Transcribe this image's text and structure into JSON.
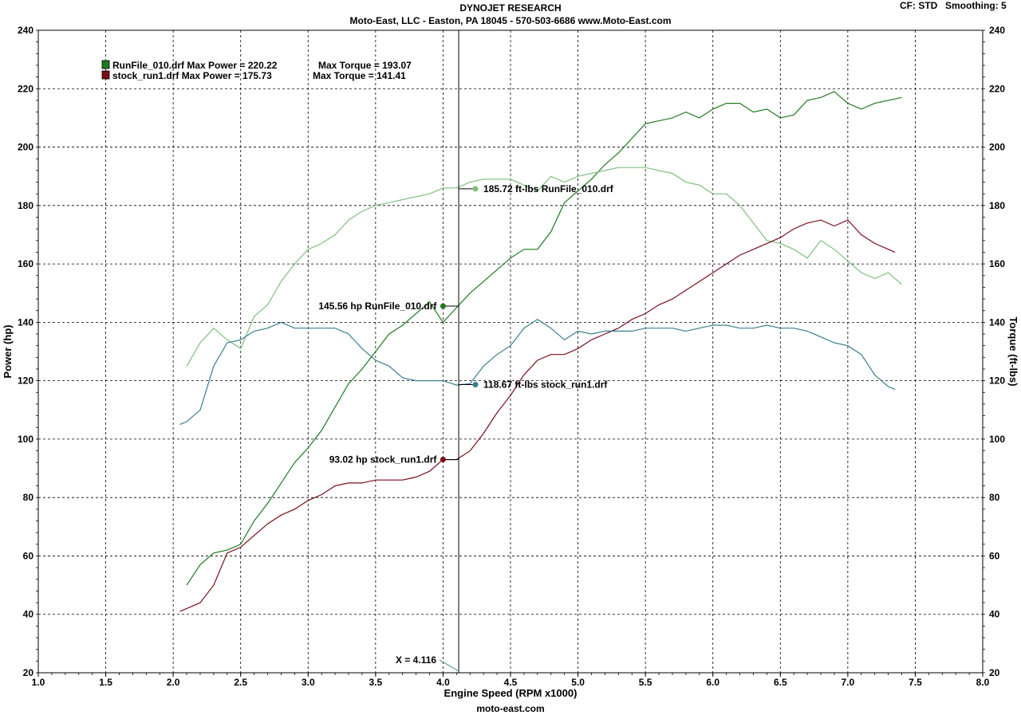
{
  "header": {
    "title": "DYNOJET RESEARCH",
    "subtitle": "Moto-East, LLC - Easton, PA 18045 - 570-503-6686 www.Moto-East.com",
    "cf": "CF: STD",
    "smoothing": "Smoothing: 5",
    "footer": "moto-east.com"
  },
  "colors": {
    "runfile_power": "#1f7a1f",
    "runfile_torque": "#7fbf7f",
    "stock_power": "#7a0f1a",
    "stock_torque": "#3a7f8f",
    "grid": "#000000"
  },
  "chart_data": {
    "type": "line",
    "xlabel": "Engine Speed (RPM x1000)",
    "ylabel": "Power (hp)",
    "y2label": "Torque (ft-lbs)",
    "xlim": [
      1.0,
      8.0
    ],
    "ylim": [
      20,
      240
    ],
    "y2lim": [
      20,
      240
    ],
    "xticks": [
      "1.0",
      "1.5",
      "2.0",
      "2.5",
      "3.0",
      "3.5",
      "4.0",
      "4.5",
      "5.0",
      "5.5",
      "6.0",
      "6.5",
      "7.0",
      "7.5",
      "8.0"
    ],
    "yticks": [
      "20",
      "40",
      "60",
      "80",
      "100",
      "120",
      "140",
      "160",
      "180",
      "200",
      "220",
      "240"
    ],
    "grid": true,
    "legend": [
      {
        "label": "RunFile_010.drf Max Power = 220.22",
        "torque": "Max Torque = 193.07",
        "color": "#1f7a1f"
      },
      {
        "label": "stock_run1.drf Max Power = 175.73",
        "torque": "Max Torque = 141.41",
        "color": "#7a0f1a"
      }
    ],
    "cursor": {
      "x": 4.116,
      "label": "X = 4.116"
    },
    "annotations": [
      {
        "text": "185.72 ft-lbs RunFile_010.drf",
        "x": 4.24,
        "y": 185.72,
        "color": "#7fbf7f",
        "side": "right"
      },
      {
        "text": "145.56 hp RunFile_010.drf",
        "x": 4.0,
        "y": 145.56,
        "color": "#1f7a1f",
        "side": "left"
      },
      {
        "text": "118.67 ft-lbs stock_run1.drf",
        "x": 4.24,
        "y": 118.67,
        "color": "#3a7f8f",
        "side": "right"
      },
      {
        "text": "93.02 hp stock_run1.drf",
        "x": 4.0,
        "y": 93.02,
        "color": "#7a0f1a",
        "side": "left"
      }
    ],
    "series": [
      {
        "name": "RunFile_010.drf Power",
        "color": "#1f7a1f",
        "x": [
          2.1,
          2.2,
          2.3,
          2.4,
          2.5,
          2.6,
          2.7,
          2.8,
          2.9,
          3.0,
          3.1,
          3.2,
          3.3,
          3.4,
          3.5,
          3.6,
          3.7,
          3.8,
          3.9,
          4.0,
          4.1,
          4.2,
          4.3,
          4.4,
          4.5,
          4.6,
          4.7,
          4.8,
          4.9,
          5.0,
          5.1,
          5.2,
          5.3,
          5.4,
          5.5,
          5.6,
          5.7,
          5.8,
          5.9,
          6.0,
          6.1,
          6.2,
          6.3,
          6.4,
          6.5,
          6.6,
          6.7,
          6.8,
          6.9,
          7.0,
          7.1,
          7.2,
          7.3,
          7.4
        ],
        "y": [
          50,
          57,
          61,
          62,
          64,
          72,
          78,
          85,
          92,
          97,
          103,
          111,
          119,
          124,
          130,
          136,
          139,
          143,
          147,
          140,
          145,
          150,
          154,
          158,
          162,
          165,
          165,
          171,
          181,
          185,
          189,
          194,
          198,
          203,
          208,
          209,
          210,
          212,
          210,
          213,
          215,
          215,
          212,
          213,
          210,
          211,
          216,
          217,
          219,
          215,
          213,
          215,
          216,
          217
        ]
      },
      {
        "name": "RunFile_010.drf Torque",
        "color": "#7fbf7f",
        "x": [
          2.1,
          2.2,
          2.3,
          2.4,
          2.5,
          2.6,
          2.7,
          2.8,
          2.9,
          3.0,
          3.1,
          3.2,
          3.3,
          3.4,
          3.5,
          3.6,
          3.7,
          3.8,
          3.9,
          4.0,
          4.1,
          4.2,
          4.3,
          4.4,
          4.5,
          4.6,
          4.7,
          4.8,
          4.9,
          5.0,
          5.1,
          5.2,
          5.3,
          5.4,
          5.5,
          5.6,
          5.7,
          5.8,
          5.9,
          6.0,
          6.1,
          6.2,
          6.3,
          6.4,
          6.5,
          6.6,
          6.7,
          6.8,
          6.9,
          7.0,
          7.1,
          7.2,
          7.3,
          7.4
        ],
        "y": [
          125,
          133,
          138,
          134,
          131,
          142,
          146,
          154,
          160,
          165,
          167,
          170,
          175,
          178,
          180,
          181,
          182,
          183,
          184,
          186,
          186,
          188,
          189,
          189,
          189,
          187,
          185,
          190,
          188,
          190,
          191,
          192,
          193,
          193,
          193,
          192,
          191,
          188,
          187,
          184,
          184,
          180,
          174,
          168,
          167,
          165,
          162,
          168,
          165,
          161,
          157,
          155,
          157,
          153
        ]
      },
      {
        "name": "stock_run1.drf Power",
        "color": "#7a0f1a",
        "x": [
          2.05,
          2.2,
          2.3,
          2.4,
          2.5,
          2.6,
          2.7,
          2.8,
          2.9,
          3.0,
          3.1,
          3.2,
          3.3,
          3.4,
          3.5,
          3.6,
          3.7,
          3.8,
          3.9,
          4.0,
          4.1,
          4.2,
          4.3,
          4.4,
          4.5,
          4.6,
          4.7,
          4.8,
          4.9,
          5.0,
          5.1,
          5.2,
          5.3,
          5.4,
          5.5,
          5.6,
          5.7,
          5.8,
          5.9,
          6.0,
          6.1,
          6.2,
          6.3,
          6.4,
          6.5,
          6.6,
          6.7,
          6.8,
          6.9,
          7.0,
          7.1,
          7.2,
          7.3,
          7.35
        ],
        "y": [
          41,
          44,
          50,
          61,
          63,
          67,
          71,
          74,
          76,
          79,
          81,
          84,
          85,
          85,
          86,
          86,
          86,
          87,
          89,
          93,
          93,
          96,
          102,
          109,
          115,
          122,
          127,
          129,
          129,
          131,
          134,
          136,
          138,
          141,
          143,
          146,
          148,
          151,
          154,
          157,
          160,
          163,
          165,
          167,
          169,
          172,
          174,
          175,
          173,
          175,
          170,
          167,
          165,
          164
        ]
      },
      {
        "name": "stock_run1.drf Torque",
        "color": "#3a7f8f",
        "x": [
          2.05,
          2.1,
          2.2,
          2.3,
          2.4,
          2.5,
          2.6,
          2.7,
          2.8,
          2.9,
          3.0,
          3.1,
          3.2,
          3.3,
          3.4,
          3.5,
          3.6,
          3.7,
          3.8,
          3.9,
          4.0,
          4.1,
          4.2,
          4.3,
          4.4,
          4.5,
          4.6,
          4.7,
          4.8,
          4.9,
          5.0,
          5.1,
          5.2,
          5.3,
          5.4,
          5.5,
          5.6,
          5.7,
          5.8,
          5.9,
          6.0,
          6.1,
          6.2,
          6.3,
          6.4,
          6.5,
          6.6,
          6.7,
          6.8,
          6.9,
          7.0,
          7.1,
          7.2,
          7.3,
          7.35
        ],
        "y": [
          105,
          106,
          110,
          125,
          133,
          134,
          137,
          138,
          140,
          138,
          138,
          138,
          138,
          136,
          131,
          127,
          125,
          121,
          120,
          120,
          120,
          118.5,
          119,
          125,
          129,
          132,
          138,
          141,
          138,
          134,
          137,
          136,
          137,
          137,
          137,
          138,
          138,
          138,
          137,
          138,
          139,
          139,
          138,
          138,
          139,
          138,
          138,
          137,
          135,
          133,
          132,
          129,
          122,
          118,
          117
        ]
      }
    ]
  }
}
